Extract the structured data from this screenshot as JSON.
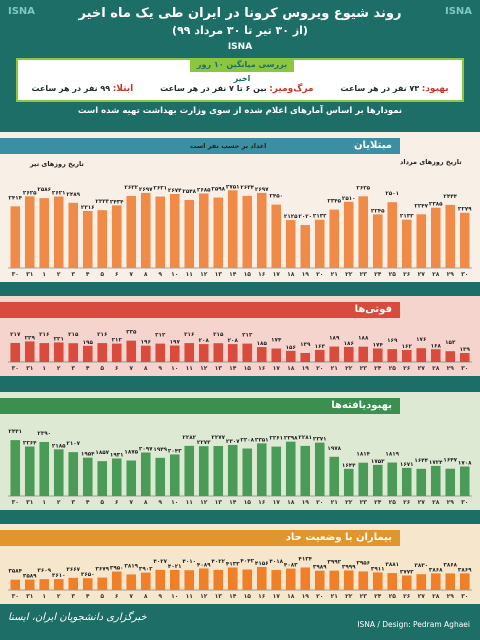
{
  "header": {
    "title": "روند شیوع ویروس کرونا در ایران طی یک ماه اخیر",
    "subtitle": "(از ۳۰ تیر تا ۳۰ مرداد ۹۹)",
    "logo": "ISNA"
  },
  "summary": {
    "title": "بررسی میانگین ۱۰ روز اخیر",
    "items": [
      {
        "key": "ابتلا:",
        "value": "۹۹ نفر در هر ساعت"
      },
      {
        "key": "مرگ‌ومیر:",
        "value": "بین ۶ تا ۷ نفر در هر ساعت"
      },
      {
        "key": "بهبود:",
        "value": "۷۳ نفر در هر ساعت"
      }
    ]
  },
  "note": "نمودارها بر اساس آمارهای اعلام شده از سوی وزارت بهداشت تهیه شده است",
  "panels": {
    "cases": "مبتلایان",
    "deaths": "فوتی‌ها",
    "recovered": "بهبودیافته‌ها",
    "critical": "بیماران با وضعیت حاد"
  },
  "annotations": {
    "tir": "تاریخ روزهای تیر",
    "mordad": "تاریخ روزهای مرداد",
    "per_person": "اعداد بر حسب نفر است"
  },
  "footer": {
    "left": "خبرگزاری دانشجویان ایران، ایسنا",
    "right": "ISNA / Design: Pedram Aghaei"
  },
  "colors": {
    "cases": "#f08a48",
    "deaths": "#d94b3c",
    "recovered": "#4a9b58",
    "critical": "#f07f2a"
  },
  "chart_data": [
    {
      "type": "bar",
      "title": "مبتلایان",
      "categories": [
        "۳۰",
        "۳۱",
        "۱",
        "۲",
        "۳",
        "۴",
        "۵",
        "۶",
        "۷",
        "۸",
        "۹",
        "۱۰",
        "۱۱",
        "۱۲",
        "۱۳",
        "۱۴",
        "۱۵",
        "۱۶",
        "۱۷",
        "۱۸",
        "۱۹",
        "۲۰",
        "۲۱",
        "۲۲",
        "۲۳",
        "۲۴",
        "۲۵",
        "۲۶",
        "۲۷",
        "۲۸",
        "۲۹",
        "۳۰"
      ],
      "values": [
        2414,
        2625,
        2586,
        2621,
        2489,
        2316,
        2333,
        2434,
        2632,
        2697,
        2621,
        2674,
        2548,
        2685,
        2598,
        2751,
        2634,
        2697,
        2450,
        2125,
        2020,
        2132,
        2345,
        2510,
        2625,
        2245,
        2501,
        2133,
        2247,
        2385,
        2444,
        2279
      ],
      "labels": [
        "۲۴۱۴",
        "۲۶۲۵",
        "۲۵۸۶",
        "۲۶۲۱",
        "۲۴۸۹",
        "۲۳۱۶",
        "۲۳۳۳",
        "۲۴۳۴",
        "۲۶۳۲",
        "۲۶۹۷",
        "۲۶۲۱",
        "۲۶۷۴",
        "۲۵۴۸",
        "۲۶۸۵",
        "۲۵۹۸",
        "۲۷۵۱",
        "۲۶۳۴",
        "۲۶۹۷",
        "۲۴۵۰",
        "۲۱۲۵",
        "۲۰۲۰",
        "۲۱۳۲",
        "۲۳۴۵",
        "۲۵۱۰",
        "۲۶۲۵",
        "۲۲۴۵",
        "۲۵۰۱",
        "۲۱۳۳",
        "۲۲۴۷",
        "۲۳۸۵",
        "۲۴۴۴",
        "۲۲۷۹"
      ]
    },
    {
      "type": "bar",
      "title": "فوتی‌ها",
      "categories": [
        "۳۰",
        "۳۱",
        "۱",
        "۲",
        "۳",
        "۴",
        "۵",
        "۶",
        "۷",
        "۸",
        "۹",
        "۱۰",
        "۱۱",
        "۱۲",
        "۱۳",
        "۱۴",
        "۱۵",
        "۱۶",
        "۱۷",
        "۱۸",
        "۱۹",
        "۲۰",
        "۲۱",
        "۲۲",
        "۲۳",
        "۲۴",
        "۲۵",
        "۲۶",
        "۲۷",
        "۲۸",
        "۲۹",
        "۳۰"
      ],
      "values": [
        217,
        229,
        216,
        221,
        215,
        195,
        216,
        212,
        235,
        196,
        212,
        197,
        216,
        208,
        215,
        208,
        212,
        185,
        174,
        156,
        139,
        163,
        189,
        186,
        188,
        174,
        169,
        162,
        176,
        168,
        153,
        139
      ],
      "labels": [
        "۲۱۷",
        "۲۲۹",
        "۲۱۶",
        "۲۲۱",
        "۲۱۵",
        "۱۹۵",
        "۲۱۶",
        "۲۱۲",
        "۲۳۵",
        "۱۹۶",
        "۲۱۲",
        "۱۹۷",
        "۲۱۶",
        "۲۰۸",
        "۲۱۵",
        "۲۰۸",
        "۲۱۲",
        "۱۸۵",
        "۱۷۴",
        "۱۵۶",
        "۱۳۹",
        "۱۶۳",
        "۱۸۹",
        "۱۸۶",
        "۱۸۸",
        "۱۷۴",
        "۱۶۹",
        "۱۶۲",
        "۱۷۶",
        "۱۶۸",
        "۱۵۳",
        "۱۳۹"
      ]
    },
    {
      "type": "bar",
      "title": "بهبودیافته‌ها",
      "categories": [
        "۳۰",
        "۳۱",
        "۱",
        "۲",
        "۳",
        "۴",
        "۵",
        "۶",
        "۷",
        "۸",
        "۹",
        "۱۰",
        "۱۱",
        "۱۲",
        "۱۳",
        "۱۴",
        "۱۵",
        "۱۶",
        "۱۷",
        "۱۸",
        "۱۹",
        "۲۰",
        "۲۱",
        "۲۲",
        "۲۳",
        "۲۴",
        "۲۵",
        "۲۶",
        "۲۷",
        "۲۸",
        "۲۹",
        "۳۰"
      ],
      "values": [
        2441,
        2264,
        2390,
        2185,
        2107,
        1954,
        1857,
        1931,
        1875,
        2097,
        1949,
        2043,
        2282,
        2273,
        2277,
        2307,
        2208,
        2351,
        2261,
        2398,
        2281,
        2371,
        1978,
        1644,
        1814,
        1753,
        1819,
        1671,
        1644,
        1724,
        1647,
        1708
      ],
      "labels": [
        "۲۴۴۱",
        "۲۲۶۴",
        "۲۳۹۰",
        "۲۱۸۵",
        "۲۱۰۷",
        "۱۹۵۴",
        "۱۸۵۷",
        "۱۹۳۱",
        "۱۸۷۵",
        "۲۰۹۷",
        "۱۹۴۹",
        "۲۰۴۳",
        "۲۲۸۲",
        "۲۲۷۳",
        "۲۲۷۷",
        "۲۳۰۷",
        "۲۲۰۸",
        "۲۳۵۱",
        "۲۲۶۱",
        "۲۳۹۸",
        "۲۲۸۱",
        "۲۳۷۱",
        "۱۹۷۸",
        "۱۶۴۴",
        "۱۸۱۴",
        "۱۷۵۳",
        "۱۸۱۹",
        "۱۶۷۱",
        "۱۶۴۴",
        "۱۷۲۴",
        "۱۶۴۷",
        "۱۷۰۸"
      ]
    },
    {
      "type": "bar",
      "title": "بیماران با وضعیت حاد",
      "categories": [
        "۳۰",
        "۳۱",
        "۱",
        "۲",
        "۳",
        "۴",
        "۵",
        "۶",
        "۷",
        "۸",
        "۹",
        "۱۰",
        "۱۱",
        "۱۲",
        "۱۳",
        "۱۴",
        "۱۵",
        "۱۶",
        "۱۷",
        "۱۸",
        "۱۹",
        "۲۰",
        "۲۱",
        "۲۲",
        "۲۳",
        "۲۴",
        "۲۵",
        "۲۶",
        "۲۷",
        "۲۸",
        "۲۹",
        "۳۰"
      ],
      "values": [
        3584,
        3589,
        3609,
        3610,
        3667,
        3650,
        3679,
        3950,
        3819,
        3902,
        4027,
        4021,
        4010,
        4089,
        4022,
        4133,
        4042,
        4156,
        4018,
        4083,
        4134,
        3989,
        3992,
        3999,
        3956,
        3911,
        3881,
        3773,
        3830,
        3868,
        3868,
        3869
      ],
      "labels": [
        "۳۵۸۴",
        "۳۵۸۹",
        "۳۶۰۹",
        "۳۶۱۰",
        "۳۶۶۷",
        "۳۶۵۰",
        "۳۶۷۹",
        "۳۹۵۰",
        "۳۸۱۹",
        "۳۹۰۲",
        "۴۰۲۷",
        "۴۰۲۱",
        "۴۰۱۰",
        "۴۰۸۹",
        "۴۰۲۲",
        "۴۱۳۳",
        "۴۰۴۲",
        "۴۱۵۶",
        "۴۰۱۸",
        "۴۰۸۳",
        "۴۱۳۴",
        "۳۹۸۹",
        "۳۹۹۲",
        "۳۹۹۹",
        "۳۹۵۶",
        "۳۹۱۱",
        "۳۸۸۱",
        "۳۷۷۳",
        "۳۸۳۰",
        "۳۸۶۸",
        "۳۸۶۸",
        "۳۸۶۹"
      ]
    }
  ]
}
